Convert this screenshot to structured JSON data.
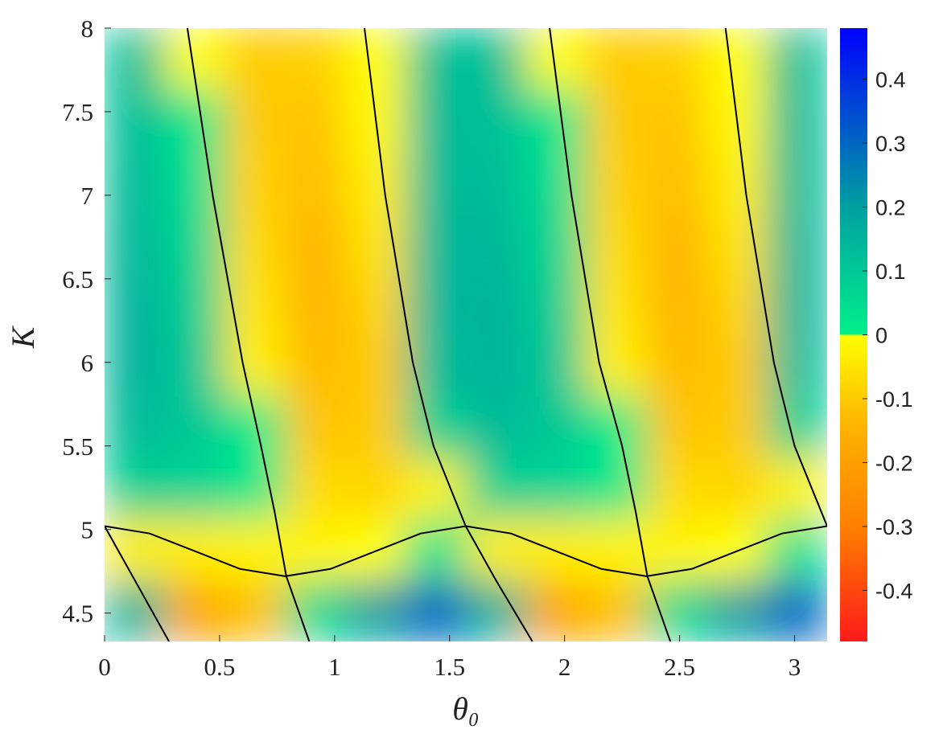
{
  "chart_data": {
    "type": "heatmap",
    "x_label": "θ₀",
    "y_label": "K",
    "xlim": [
      0,
      3.1416
    ],
    "ylim": [
      4.33,
      8
    ],
    "xticks": [
      0,
      0.5,
      1,
      1.5,
      2,
      2.5,
      3
    ],
    "yticks": [
      4.5,
      5,
      5.5,
      6,
      6.5,
      7,
      7.5,
      8
    ],
    "x": [
      0.131,
      0.393,
      0.654,
      0.916,
      1.178,
      1.44,
      1.702,
      1.963,
      2.225,
      2.487,
      2.749,
      3.01
    ],
    "y": [
      7.82,
      7.45,
      7.08,
      6.72,
      6.35,
      5.98,
      5.61,
      5.25,
      4.88,
      4.51
    ],
    "z": [
      [
        0.12,
        0.0,
        -0.1,
        -0.09,
        0.0,
        0.12,
        0.12,
        0.0,
        -0.1,
        -0.09,
        0.0,
        0.12
      ],
      [
        0.12,
        0.02,
        -0.1,
        -0.11,
        -0.01,
        0.13,
        0.12,
        0.02,
        -0.1,
        -0.11,
        -0.01,
        0.13
      ],
      [
        0.13,
        0.04,
        -0.09,
        -0.12,
        -0.03,
        0.13,
        0.13,
        0.04,
        -0.09,
        -0.12,
        -0.03,
        0.13
      ],
      [
        0.14,
        0.06,
        -0.07,
        -0.14,
        -0.05,
        0.14,
        0.14,
        0.06,
        -0.07,
        -0.14,
        -0.05,
        0.14
      ],
      [
        0.15,
        0.08,
        -0.05,
        -0.14,
        -0.08,
        0.14,
        0.15,
        0.08,
        -0.05,
        -0.14,
        -0.08,
        0.14
      ],
      [
        0.15,
        0.1,
        -0.03,
        -0.13,
        -0.1,
        0.13,
        0.15,
        0.1,
        -0.03,
        -0.13,
        -0.1,
        0.13
      ],
      [
        0.13,
        0.1,
        0.01,
        -0.11,
        -0.1,
        0.08,
        0.13,
        0.1,
        0.01,
        -0.11,
        -0.1,
        0.08
      ],
      [
        0.08,
        0.07,
        0.02,
        -0.07,
        -0.08,
        -0.02,
        0.08,
        0.07,
        0.02,
        -0.07,
        -0.08,
        -0.02
      ],
      [
        -0.03,
        -0.03,
        -0.02,
        -0.02,
        0.0,
        0.03,
        -0.03,
        -0.03,
        -0.02,
        -0.02,
        0.0,
        0.03
      ],
      [
        0.15,
        -0.18,
        -0.12,
        0.05,
        0.2,
        0.3,
        0.15,
        -0.18,
        -0.12,
        0.05,
        0.2,
        0.3
      ]
    ],
    "clim": [
      -0.48,
      0.48
    ],
    "colorbar_ticks": [
      -0.4,
      -0.3,
      -0.2,
      -0.1,
      0,
      0.1,
      0.2,
      0.3,
      0.4
    ],
    "colorscale": [
      [
        -0.48,
        "#ff1a1a"
      ],
      [
        -0.3,
        "#ff8000"
      ],
      [
        -0.15,
        "#ffb000"
      ],
      [
        0,
        "#ffff00"
      ],
      [
        0,
        "#00f08a"
      ],
      [
        0.2,
        "#00a0a0"
      ],
      [
        0.48,
        "#0000ff"
      ]
    ],
    "contours": [
      {
        "x": [
          0,
          0.28
        ],
        "y": [
          5.02,
          4.33
        ]
      },
      {
        "x": [
          0.36,
          0.47,
          0.6,
          0.68,
          0.74,
          0.79,
          0.89
        ],
        "y": [
          8,
          7,
          6,
          5.5,
          5.1,
          4.72,
          4.33
        ]
      },
      {
        "x": [
          1.13,
          1.22,
          1.34,
          1.43,
          1.57,
          1.7,
          1.86
        ],
        "y": [
          8,
          7,
          6,
          5.5,
          5.02,
          4.7,
          4.33
        ]
      },
      {
        "x": [
          1.935,
          2.03,
          2.15,
          2.25,
          2.31,
          2.36,
          2.46
        ],
        "y": [
          8,
          7,
          6,
          5.5,
          5.1,
          4.72,
          4.33
        ]
      },
      {
        "x": [
          2.7,
          2.79,
          2.91,
          3.0,
          3.1416
        ],
        "y": [
          8,
          7,
          6,
          5.5,
          5.02
        ]
      },
      {
        "x": [
          0,
          0.196,
          0.393,
          0.589,
          0.785,
          0.982,
          1.178,
          1.374,
          1.571,
          1.767,
          1.963,
          2.16,
          2.356,
          2.553,
          2.749,
          2.945,
          3.1416
        ],
        "y": [
          5.02,
          4.976,
          4.87,
          4.764,
          4.72,
          4.764,
          4.87,
          4.976,
          5.02,
          4.976,
          4.87,
          4.764,
          4.72,
          4.764,
          4.87,
          4.976,
          5.02
        ]
      }
    ],
    "contour_color": "#000000"
  }
}
